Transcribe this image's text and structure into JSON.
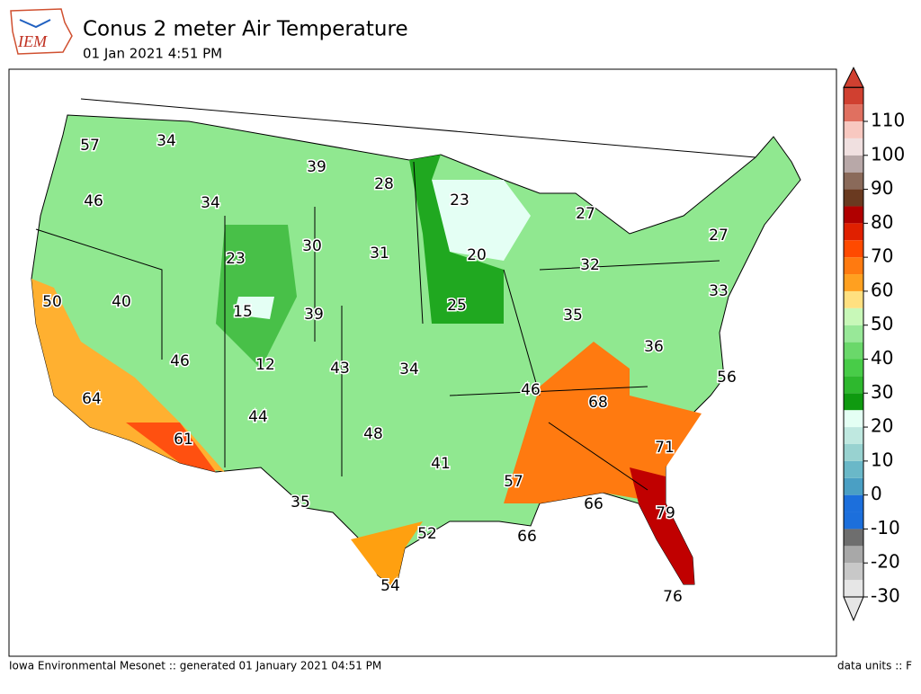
{
  "header": {
    "logo": "IEM",
    "title": "Conus 2 meter Air Temperature",
    "subtitle": "01 Jan 2021 4:51 PM"
  },
  "map": {
    "labels": [
      57,
      34,
      39,
      28,
      23,
      46,
      34,
      27,
      30,
      31,
      20,
      27,
      23,
      32,
      50,
      40,
      15,
      39,
      25,
      35,
      33,
      36,
      46,
      12,
      43,
      34,
      56,
      46,
      68,
      64,
      44,
      61,
      48,
      71,
      41,
      57,
      66,
      79,
      35,
      52,
      66,
      54,
      76
    ]
  },
  "colorbar": {
    "ticks": [
      -30,
      -20,
      -10,
      0,
      10,
      20,
      30,
      40,
      50,
      60,
      70,
      80,
      90,
      100,
      110
    ],
    "colors": [
      "#e6e6e6",
      "#c8c8c8",
      "#a8a8a8",
      "#6e6e6e",
      "#1c6fdc",
      "#1c6fdc",
      "#4a9fc4",
      "#6ab8c8",
      "#98d2d0",
      "#bfe8e0",
      "#e4fff4",
      "#0f9a10",
      "#2eb82e",
      "#48cc48",
      "#6ad86a",
      "#98e898",
      "#c8f8b8",
      "#ffe080",
      "#ffa020",
      "#ff7a10",
      "#ff4a00",
      "#e02000",
      "#b00000",
      "#6a3a20",
      "#8a6a5a",
      "#b8a8a8",
      "#f0e0e0",
      "#f8c8c0",
      "#e07060",
      "#d04030"
    ]
  },
  "footer": {
    "left": "Iowa Environmental Mesonet :: generated 01 January 2021 04:51 PM",
    "right": "data units :: F"
  }
}
